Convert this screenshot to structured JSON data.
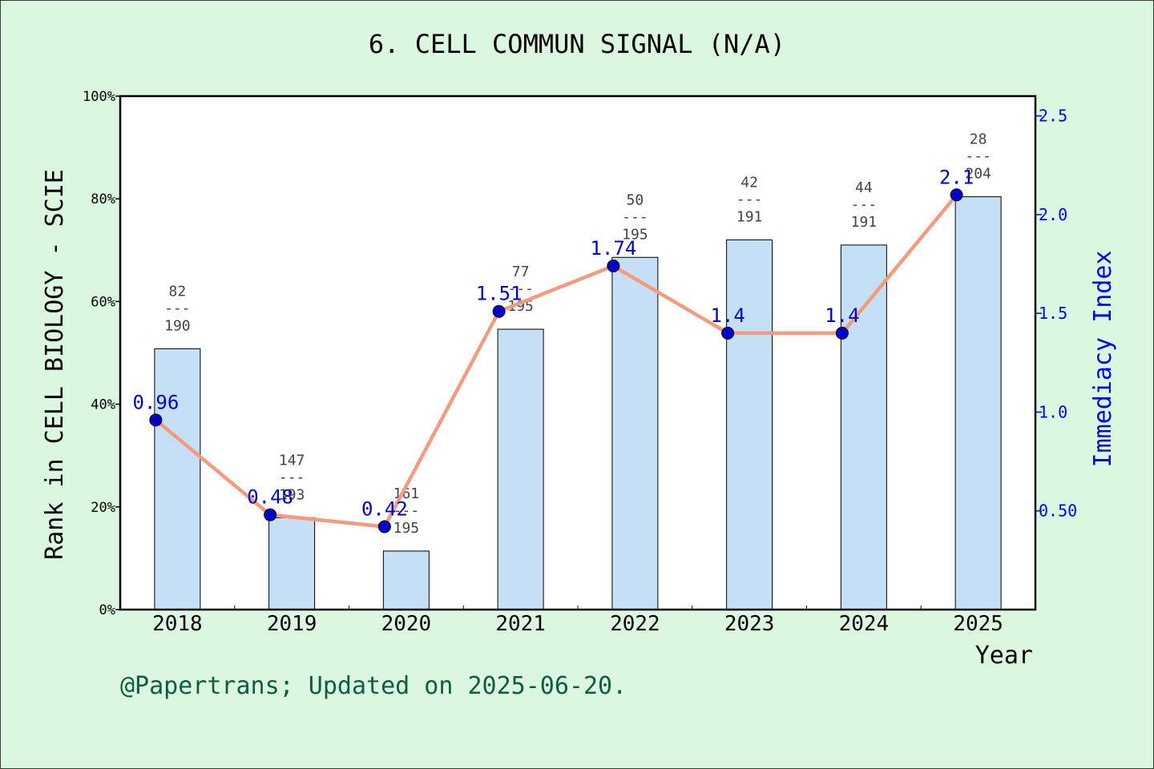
{
  "colors": {
    "background": "#dbf7df",
    "plot_background": "#ffffff",
    "bar_fill": "#c5dff7",
    "line": "#f59a7c",
    "marker": "#0000cc",
    "right_axis": "#0000ff",
    "footer_text": "#0f5c46"
  },
  "footer": "@Papertrans; Updated on 2025-06-20.",
  "chart_data": {
    "type": "bar",
    "title": "6. CELL COMMUN SIGNAL (N/A)",
    "xlabel": "Year",
    "ylabel": "Rank in CELL BIOLOGY - SCIE",
    "y2label": "Immediacy Index",
    "categories": [
      "2018",
      "2019",
      "2020",
      "2021",
      "2022",
      "2023",
      "2024",
      "2025"
    ],
    "ylim": [
      0,
      100
    ],
    "y_ticks": [
      "0%",
      "20%",
      "40%",
      "60%",
      "80%",
      "100%"
    ],
    "y2lim": [
      0,
      2.6
    ],
    "y2_ticks": [
      "0.50",
      "1.0",
      "1.5",
      "2.0",
      "2.5"
    ],
    "series": [
      {
        "kind": "bar",
        "values": [
          50.8,
          17.9,
          11.4,
          54.6,
          68.6,
          72.0,
          71.0,
          80.4
        ],
        "rank_numerators": [
          "82",
          "147",
          "161",
          "77",
          "50",
          "42",
          "44",
          "28"
        ],
        "rank_denominators": [
          "190",
          "193",
          "195",
          "195",
          "195",
          "191",
          "191",
          "204"
        ],
        "separator": "---"
      },
      {
        "kind": "line",
        "values": [
          0.96,
          0.48,
          0.42,
          1.51,
          1.74,
          1.4,
          1.4,
          2.1
        ],
        "labels": [
          "0.96",
          "0.48",
          "0.42",
          "1.51",
          "1.74",
          "1.4",
          "1.4",
          "2.1"
        ]
      }
    ]
  }
}
